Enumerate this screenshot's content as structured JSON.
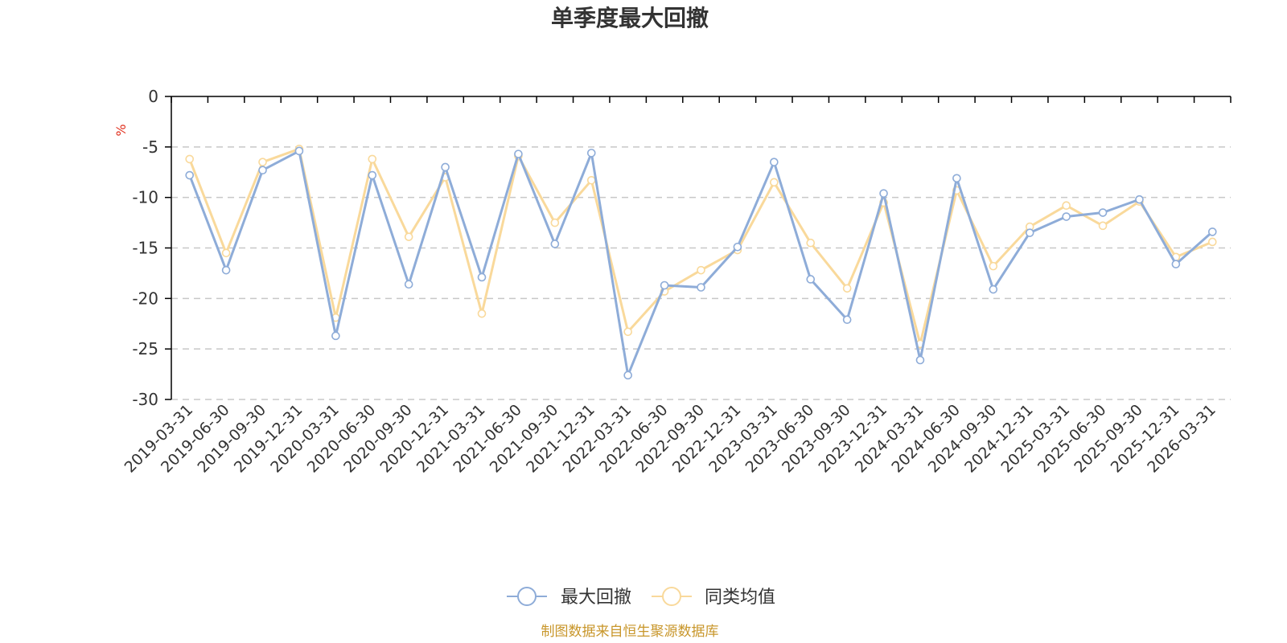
{
  "chart_data": {
    "type": "line",
    "title": "单季度最大回撤",
    "ylabel": "%",
    "xlabel": "",
    "ylim": [
      -30,
      0
    ],
    "yticks": [
      0,
      -5,
      -10,
      -15,
      -20,
      -25,
      -30
    ],
    "categories": [
      "2019-03-31",
      "2019-06-30",
      "2019-09-30",
      "2019-12-31",
      "2020-03-31",
      "2020-06-30",
      "2020-09-30",
      "2020-12-31",
      "2021-03-31",
      "2021-06-30",
      "2021-09-30",
      "2021-12-31",
      "2022-03-31",
      "2022-06-30",
      "2022-09-30",
      "2022-12-31",
      "2023-03-31",
      "2023-06-30",
      "2023-09-30",
      "2023-12-31",
      "2024-03-31",
      "2024-06-30",
      "2024-09-30",
      "2024-12-31",
      "2025-03-31",
      "2025-06-30",
      "2025-09-30",
      "2025-12-31",
      "2026-03-31"
    ],
    "series": [
      {
        "name": "最大回撤",
        "color": "#8eacd8",
        "values": [
          -7.8,
          -17.2,
          -7.3,
          -5.4,
          -23.7,
          -7.8,
          -18.6,
          -7.0,
          -17.9,
          -5.7,
          -14.6,
          -5.6,
          -27.6,
          -18.7,
          -18.9,
          -14.9,
          -6.5,
          -18.1,
          -22.1,
          -9.6,
          -26.1,
          -8.1,
          -19.1,
          -13.5,
          -11.9,
          -11.5,
          -10.2,
          -16.6,
          -13.4
        ]
      },
      {
        "name": "同类均值",
        "color": "#f9d99b",
        "values": [
          -6.2,
          -15.5,
          -6.5,
          -5.2,
          -21.9,
          -6.2,
          -13.9,
          -8.0,
          -21.5,
          -5.9,
          -12.5,
          -8.3,
          -23.3,
          -19.3,
          -17.2,
          -15.2,
          -8.5,
          -14.5,
          -19.0,
          -10.5,
          -24.5,
          -9.3,
          -16.8,
          -12.9,
          -10.8,
          -12.8,
          -10.4,
          -15.9,
          -14.4
        ]
      }
    ],
    "legend": [
      "最大回撤",
      "同类均值"
    ],
    "legend_position": "bottom-center",
    "grid": true,
    "source_note": "制图数据来自恒生聚源数据库"
  }
}
